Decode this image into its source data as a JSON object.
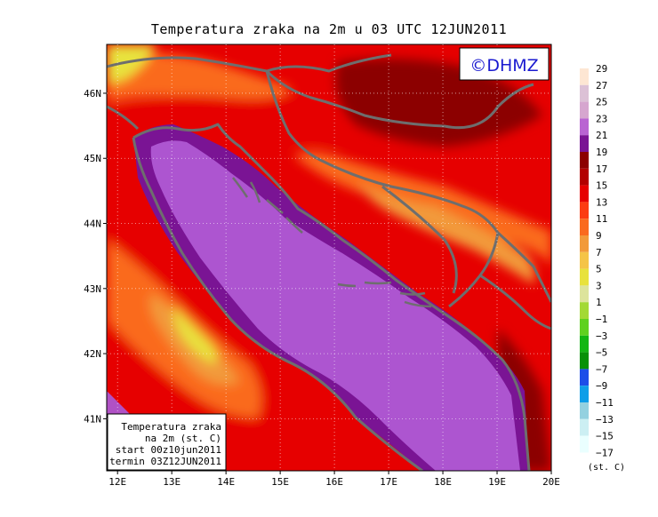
{
  "title": "Temperatura zraka na 2m u 03 UTC 12JUN2011",
  "logo": {
    "text": "©DHMZ",
    "color": "#1a1ad0"
  },
  "info_box": {
    "lines": [
      "Temperatura zraka",
      "na 2m (st. C)",
      "start 00z10jun2011",
      "termin 03Z12JUN2011"
    ]
  },
  "map": {
    "lon_range": [
      11.8,
      20.0
    ],
    "lat_range": [
      40.2,
      46.75
    ],
    "lon_labels": [
      "12E",
      "13E",
      "14E",
      "15E",
      "16E",
      "17E",
      "18E",
      "19E",
      "20E"
    ],
    "lat_labels": [
      "41N",
      "42N",
      "43N",
      "44N",
      "45N",
      "46N"
    ],
    "grid": true
  },
  "legend": {
    "labels": [
      "29",
      "27",
      "25",
      "23",
      "21",
      "19",
      "17",
      "15",
      "13",
      "11",
      "9",
      "7",
      "5",
      "3",
      "1",
      "−1",
      "−3",
      "−5",
      "−7",
      "−9",
      "−11",
      "−13",
      "−15",
      "−17"
    ],
    "colors": [
      "#fde6d3",
      "#dcc1d6",
      "#d6a6cf",
      "#b964d2",
      "#7a1494",
      "#8c0000",
      "#b30000",
      "#e60000",
      "#fc3c12",
      "#fa6a1e",
      "#f29a3a",
      "#f5c447",
      "#e8e23c",
      "#dde49c",
      "#a3d935",
      "#5fd11f",
      "#12b612",
      "#079107",
      "#1d4ee8",
      "#0f9ee8",
      "#94d1e0",
      "#cceff3",
      "#eaffff"
    ],
    "unit": "(st. C)"
  },
  "colors": {
    "sea": "#ad55d0",
    "sea_coast": "#7a1494",
    "hot": "#8c0000",
    "warm": "#e60000",
    "mild": "#fa6a1e",
    "cool": "#f29a3a",
    "cold": "#e8e23c",
    "coastline": "#6e6e6e"
  }
}
